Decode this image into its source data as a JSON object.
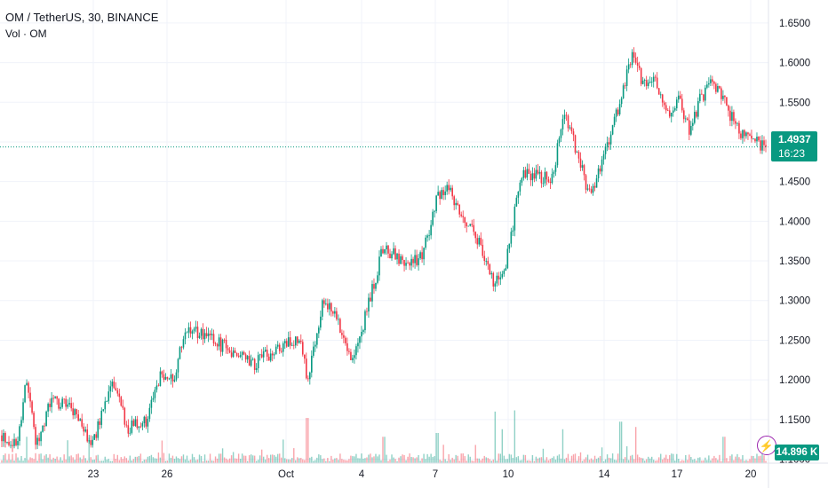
{
  "header": {
    "symbol_title": "OM / TetherUS, 30, BINANCE",
    "volume_label": "Vol · OM"
  },
  "price_tag": {
    "price": "1.4937",
    "countdown": "16:23"
  },
  "volume_tag": {
    "value": "14.896 K"
  },
  "icons": {
    "alert": "lightning-icon"
  },
  "colors": {
    "up": "#089981",
    "down": "#f23645",
    "grid": "#f0f3fa",
    "price_line": "#089981"
  },
  "chart_data": {
    "type": "candlestick",
    "title": "OM / TetherUS, 30, BINANCE",
    "y_ticks": [
      "1.6500",
      "1.6000",
      "1.5500",
      "1.5000",
      "1.4500",
      "1.4000",
      "1.3500",
      "1.3000",
      "1.2500",
      "1.2000",
      "1.1500",
      "1.1000"
    ],
    "x_ticks": [
      "23",
      "26",
      "Oct",
      "4",
      "7",
      "10",
      "14",
      "17",
      "20"
    ],
    "ylim": [
      1.095,
      1.67
    ],
    "last_price": 1.4937,
    "grid": true,
    "close_path": [
      [
        0.0,
        1.13
      ],
      [
        0.02,
        1.115
      ],
      [
        0.032,
        1.205
      ],
      [
        0.045,
        1.12
      ],
      [
        0.065,
        1.175
      ],
      [
        0.09,
        1.165
      ],
      [
        0.118,
        1.12
      ],
      [
        0.145,
        1.195
      ],
      [
        0.165,
        1.14
      ],
      [
        0.19,
        1.15
      ],
      [
        0.21,
        1.21
      ],
      [
        0.225,
        1.195
      ],
      [
        0.24,
        1.265
      ],
      [
        0.265,
        1.255
      ],
      [
        0.295,
        1.24
      ],
      [
        0.33,
        1.22
      ],
      [
        0.36,
        1.24
      ],
      [
        0.39,
        1.25
      ],
      [
        0.4,
        1.2
      ],
      [
        0.42,
        1.3
      ],
      [
        0.44,
        1.275
      ],
      [
        0.46,
        1.225
      ],
      [
        0.48,
        1.295
      ],
      [
        0.5,
        1.37
      ],
      [
        0.525,
        1.345
      ],
      [
        0.55,
        1.355
      ],
      [
        0.57,
        1.43
      ],
      [
        0.585,
        1.445
      ],
      [
        0.6,
        1.41
      ],
      [
        0.62,
        1.385
      ],
      [
        0.645,
        1.32
      ],
      [
        0.66,
        1.35
      ],
      [
        0.68,
        1.455
      ],
      [
        0.7,
        1.46
      ],
      [
        0.72,
        1.45
      ],
      [
        0.735,
        1.54
      ],
      [
        0.75,
        1.495
      ],
      [
        0.77,
        1.43
      ],
      [
        0.79,
        1.485
      ],
      [
        0.81,
        1.555
      ],
      [
        0.825,
        1.61
      ],
      [
        0.84,
        1.57
      ],
      [
        0.855,
        1.58
      ],
      [
        0.87,
        1.53
      ],
      [
        0.885,
        1.555
      ],
      [
        0.9,
        1.515
      ],
      [
        0.915,
        1.555
      ],
      [
        0.93,
        1.58
      ],
      [
        0.945,
        1.55
      ],
      [
        0.965,
        1.515
      ],
      [
        0.985,
        1.5
      ],
      [
        1.0,
        1.4937
      ]
    ],
    "volume_spikes": [
      [
        0.032,
        0.35
      ],
      [
        0.21,
        0.3
      ],
      [
        0.398,
        1.0
      ],
      [
        0.4,
        0.6
      ],
      [
        0.5,
        0.35
      ],
      [
        0.57,
        0.4
      ],
      [
        0.645,
        0.65
      ],
      [
        0.655,
        0.45
      ],
      [
        0.672,
        0.7
      ],
      [
        0.735,
        0.45
      ],
      [
        0.81,
        0.55
      ],
      [
        0.83,
        0.48
      ],
      [
        0.945,
        0.35
      ]
    ]
  }
}
